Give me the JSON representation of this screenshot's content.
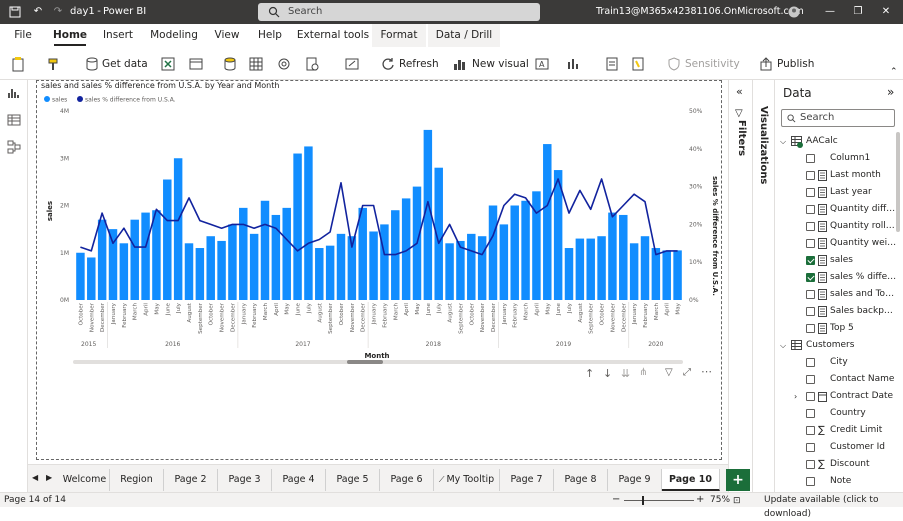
{
  "titlebar": {
    "filename": "day1",
    "app": "Power BI Desktop",
    "search_placeholder": "Search",
    "account": "Train13@M365x42381106.OnMicrosoft.com"
  },
  "ribbon_tabs": [
    "File",
    "Home",
    "Insert",
    "Modeling",
    "View",
    "Help",
    "External tools",
    "Format",
    "Data / Drill"
  ],
  "toolbar": {
    "get_data": "Get data",
    "refresh": "Refresh",
    "new_visual": "New visual",
    "sensitivity": "Sensitivity",
    "publish": "Publish"
  },
  "chart_data": {
    "type": "bar",
    "title": "sales and sales % difference from U.S.A. by Year and Month",
    "legend": [
      "sales",
      "sales % difference from U.S.A."
    ],
    "xlabel": "Month",
    "ylabel": "sales",
    "y2label": "sales % difference from U.S.A.",
    "yticks": [
      "0M",
      "1M",
      "2M",
      "3M",
      "4M"
    ],
    "ylim": [
      0,
      4
    ],
    "y2ticks": [
      "0%",
      "10%",
      "20%",
      "30%",
      "40%",
      "50%"
    ],
    "y2lim": [
      0,
      50
    ],
    "categories": [
      "October",
      "November",
      "December",
      "January",
      "February",
      "March",
      "April",
      "May",
      "June",
      "July",
      "August",
      "September",
      "October",
      "November",
      "December",
      "January",
      "February",
      "March",
      "April",
      "May",
      "June",
      "July",
      "August",
      "September",
      "October",
      "November",
      "December",
      "January",
      "February",
      "March",
      "April",
      "May",
      "June",
      "July",
      "August",
      "September",
      "October",
      "November",
      "December",
      "January",
      "February",
      "March",
      "April",
      "May",
      "June",
      "July",
      "August",
      "September",
      "October",
      "November",
      "December",
      "January",
      "February",
      "March",
      "April",
      "May"
    ],
    "years": [
      {
        "label": "2015",
        "start": 0,
        "end": 2
      },
      {
        "label": "2016",
        "start": 3,
        "end": 14
      },
      {
        "label": "2017",
        "start": 15,
        "end": 26
      },
      {
        "label": "2018",
        "start": 27,
        "end": 38
      },
      {
        "label": "2019",
        "start": 39,
        "end": 50
      },
      {
        "label": "2020",
        "start": 51,
        "end": 55
      }
    ],
    "series": [
      {
        "name": "sales",
        "values": [
          1.0,
          0.9,
          1.7,
          1.5,
          1.2,
          1.7,
          1.85,
          1.9,
          2.55,
          3.0,
          1.2,
          1.1,
          1.35,
          1.25,
          1.6,
          1.95,
          1.4,
          2.1,
          1.8,
          1.95,
          3.1,
          3.25,
          1.1,
          1.15,
          1.4,
          1.35,
          1.95,
          1.45,
          1.6,
          1.9,
          2.15,
          2.4,
          3.6,
          2.8,
          1.2,
          1.25,
          1.4,
          1.35,
          2.0,
          1.6,
          2.0,
          2.1,
          2.3,
          3.3,
          2.75,
          1.1,
          1.3,
          1.3,
          1.35,
          1.85,
          1.8,
          1.2,
          1.35,
          1.1,
          1.05,
          1.05
        ]
      },
      {
        "name": "sales % difference from U.S.A.",
        "values": [
          14,
          13,
          23,
          15,
          19,
          14,
          14,
          24,
          21,
          21,
          27,
          21,
          20,
          19,
          20,
          20,
          19,
          20,
          19,
          16,
          13,
          15,
          16,
          18,
          31,
          14,
          25,
          25,
          12,
          12,
          13,
          15,
          26,
          15,
          20,
          14,
          13,
          12,
          17,
          25,
          28,
          27,
          23,
          25,
          32,
          23,
          29,
          24,
          32,
          22,
          25,
          28,
          26,
          12,
          13,
          13
        ]
      }
    ]
  },
  "filters_label": "Filters",
  "visualizations_label": "Visualizations",
  "data_pane": {
    "title": "Data",
    "search_placeholder": "Search",
    "fields": [
      {
        "label": "AACalc",
        "kind": "table",
        "checked": false
      },
      {
        "label": "Column1",
        "kind": "field",
        "checked": false
      },
      {
        "label": "Last month",
        "kind": "measure",
        "checked": false
      },
      {
        "label": "Last year",
        "kind": "measure",
        "checked": false
      },
      {
        "label": "Quantity differ...",
        "kind": "measure",
        "checked": false
      },
      {
        "label": "Quantity rollin...",
        "kind": "measure",
        "checked": false
      },
      {
        "label": "Quantity weigh...",
        "kind": "measure",
        "checked": false
      },
      {
        "label": "sales",
        "kind": "measure",
        "checked": true
      },
      {
        "label": "sales % differe...",
        "kind": "measure",
        "checked": true
      },
      {
        "label": "sales and Top 5...",
        "kind": "measure",
        "checked": false
      },
      {
        "label": "Sales backpack",
        "kind": "measure",
        "checked": false
      },
      {
        "label": "Top 5",
        "kind": "measure",
        "checked": false
      },
      {
        "label": "Customers",
        "kind": "table",
        "checked": false
      },
      {
        "label": "City",
        "kind": "field",
        "checked": false
      },
      {
        "label": "Contact Name",
        "kind": "field",
        "checked": false
      },
      {
        "label": "Contract Date",
        "kind": "date",
        "checked": false
      },
      {
        "label": "Country",
        "kind": "field",
        "checked": false
      },
      {
        "label": "Credit Limit",
        "kind": "sum",
        "checked": false
      },
      {
        "label": "Customer Id",
        "kind": "field",
        "checked": false
      },
      {
        "label": "Discount",
        "kind": "sum",
        "checked": false
      },
      {
        "label": "Note",
        "kind": "field",
        "checked": false
      }
    ]
  },
  "page_tabs": [
    "Welcome",
    "Region",
    "Page 2",
    "Page 3",
    "Page 4",
    "Page 5",
    "Page 6",
    "My Tooltip",
    "Page 7",
    "Page 8",
    "Page 9",
    "Page 10"
  ],
  "active_page": "Page 10",
  "status": {
    "page": "Page 14 of 14",
    "zoom": "75%",
    "update": "Update available (click to download)"
  },
  "colors": {
    "bar": "#118dff",
    "line": "#12239e"
  }
}
